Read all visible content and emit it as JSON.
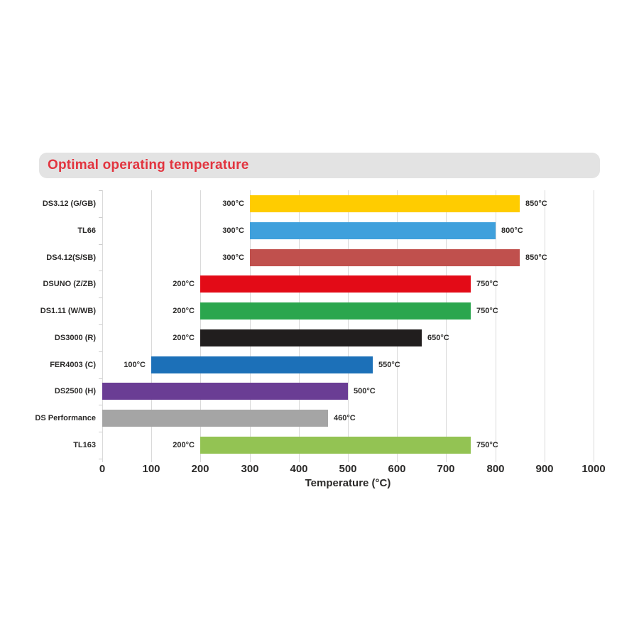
{
  "header": {
    "title": "Optimal operating temperature",
    "title_color": "#e2343f",
    "background_color": "#e3e3e3"
  },
  "chart_data": {
    "type": "bar",
    "orientation": "horizontal-range",
    "title": "Optimal operating temperature",
    "xlabel": "Temperature (°C)",
    "xlim": [
      0,
      1000
    ],
    "x_ticks": [
      0,
      100,
      200,
      300,
      400,
      500,
      600,
      700,
      800,
      900,
      1000
    ],
    "grid": true,
    "legend": "none",
    "rows": [
      {
        "category": "DS3.12 (G/GB)",
        "start": 300,
        "end": 850,
        "start_label": "300°C",
        "end_label": "850°C",
        "color": "#ffcc00",
        "color_name": "yellow"
      },
      {
        "category": "TL66",
        "start": 300,
        "end": 800,
        "start_label": "300°C",
        "end_label": "800°C",
        "color": "#3fa0dc",
        "color_name": "light-blue"
      },
      {
        "category": "DS4.12(S/SB)",
        "start": 300,
        "end": 850,
        "start_label": "300°C",
        "end_label": "850°C",
        "color": "#c0504d",
        "color_name": "brick-red"
      },
      {
        "category": "DSUNO (Z/ZB)",
        "start": 200,
        "end": 750,
        "start_label": "200°C",
        "end_label": "750°C",
        "color": "#e30b17",
        "color_name": "red"
      },
      {
        "category": "DS1.11 (W/WB)",
        "start": 200,
        "end": 750,
        "start_label": "200°C",
        "end_label": "750°C",
        "color": "#2ba64e",
        "color_name": "green"
      },
      {
        "category": "DS3000 (R)",
        "start": 200,
        "end": 650,
        "start_label": "200°C",
        "end_label": "650°C",
        "color": "#211e1e",
        "color_name": "black"
      },
      {
        "category": "FER4003 (C)",
        "start": 100,
        "end": 550,
        "start_label": "100°C",
        "end_label": "550°C",
        "color": "#1c70b8",
        "color_name": "blue"
      },
      {
        "category": "DS2500 (H)",
        "start": 0,
        "end": 500,
        "start_label": "",
        "end_label": "500°C",
        "color": "#6a3d94",
        "color_name": "purple"
      },
      {
        "category": "DS Performance",
        "start": 0,
        "end": 460,
        "start_label": "",
        "end_label": "460°C",
        "color": "#a5a5a5",
        "color_name": "gray"
      },
      {
        "category": "TL163",
        "start": 200,
        "end": 750,
        "start_label": "200°C",
        "end_label": "750°C",
        "color": "#93c353",
        "color_name": "light-green"
      }
    ],
    "style_colors": {
      "gridline": "#d9d9d9",
      "axis_tick": "#cccccc",
      "text": "#2b2a29"
    }
  }
}
